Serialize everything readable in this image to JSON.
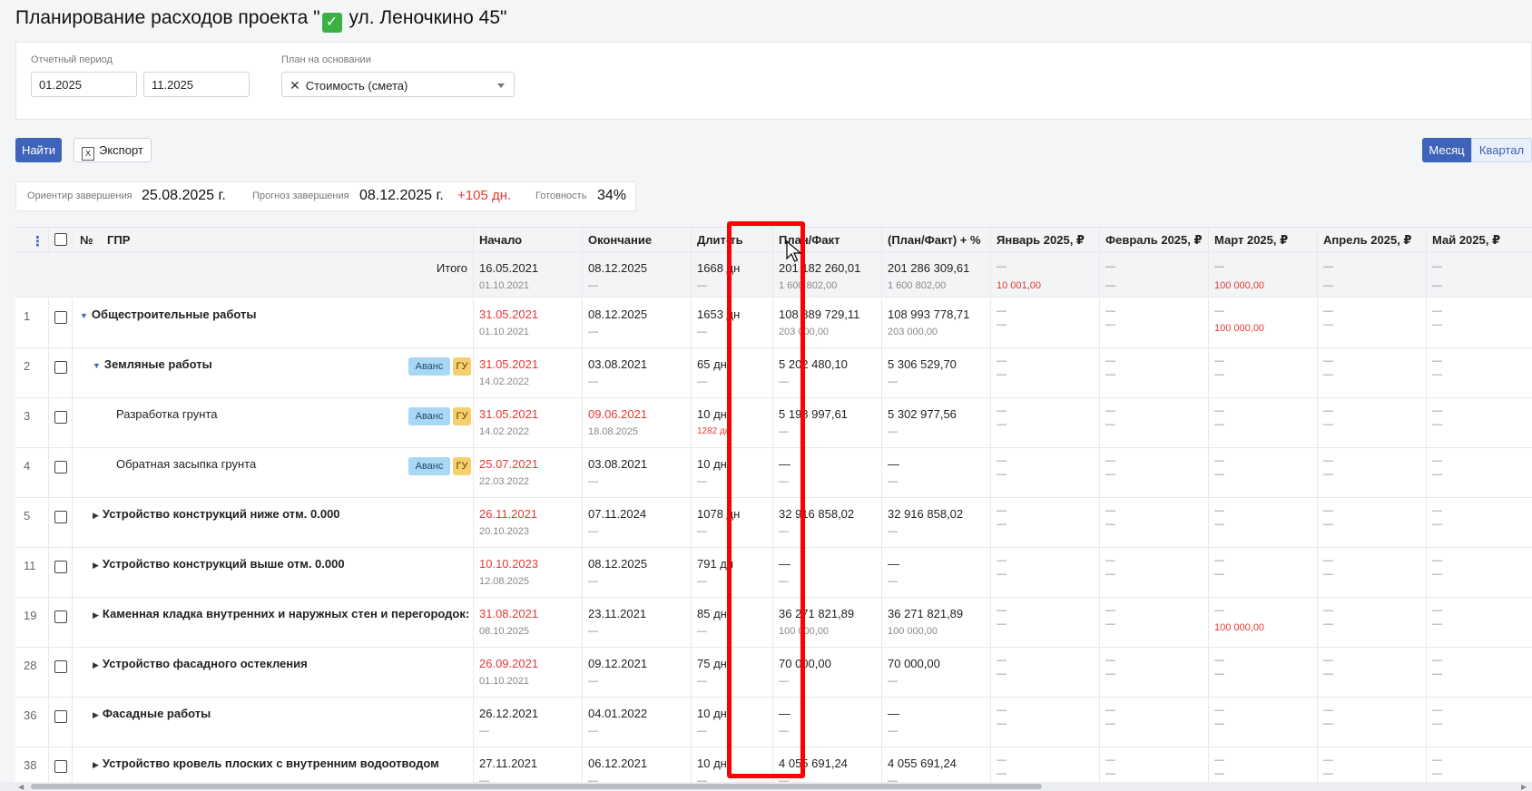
{
  "page": {
    "title_prefix": "Планирование расходов проекта \"",
    "title_suffix": " ул. Леночкино 45\""
  },
  "filters": {
    "period_label": "Отчетный период",
    "period_from": "01.2025",
    "period_to": "11.2025",
    "basis_label": "План на основании",
    "basis_value": "Стоимость (смета)"
  },
  "toolbar": {
    "find_label": "Найти",
    "export_label": "Экспорт",
    "month_label": "Месяц",
    "quarter_label": "Квартал"
  },
  "summary": {
    "target_label": "Ориентир завершения",
    "target_value": "25.08.2025 г.",
    "forecast_label": "Прогноз завершения",
    "forecast_value": "08.12.2025 г.",
    "forecast_delta": "+105 дн.",
    "readiness_label": "Готовность",
    "readiness_value": "34%"
  },
  "table": {
    "headers": {
      "num": "№",
      "name": "ГПР",
      "start": "Начало",
      "end": "Окончание",
      "duration": "Длит-ть",
      "plan_fact": "План/Факт",
      "plan_fact_pct": "(План/Факт) + %",
      "m1": "Январь 2025, ₽",
      "m2": "Февраль 2025, ₽",
      "m3": "Март 2025, ₽",
      "m4": "Апрель 2025, ₽",
      "m5": "Май 2025, ₽"
    },
    "totals": {
      "label": "Итого",
      "start": "16.05.2021",
      "start2": "01.10.2021",
      "end": "08.12.2025",
      "end2": "—",
      "dur": "1668 дн",
      "dur2": "—",
      "pf": "201 182 260,01",
      "pf2": "1 600 802,00",
      "pfp": "201 286 309,61",
      "pfp2": "1 600 802,00",
      "m1": "—",
      "m1b": "10 001,00",
      "m2": "—",
      "m2b": "—",
      "m3": "—",
      "m3b": "100 000,00",
      "m4": "—",
      "m4b": "—",
      "m5": "—",
      "m5b": "—"
    },
    "rows": [
      {
        "num": "1",
        "name": "Общестроительные работы",
        "start": "31.05.2021",
        "start2": "01.10.2021",
        "end": "08.12.2025",
        "end2": "—",
        "dur": "1653 дн",
        "dur2": "—",
        "pf": "108 889 729,11",
        "pf2": "203 000,00",
        "pfp": "108 993 778,71",
        "pfp2": "203 000,00",
        "m1": "—",
        "m1b": "—",
        "m2": "—",
        "m2b": "—",
        "m3": "—",
        "m3b": "100 000,00",
        "m4": "—",
        "m4b": "—",
        "m5": "—",
        "m5b": "—"
      },
      {
        "num": "2",
        "name": "Земляные работы",
        "tag1": "Аванс",
        "tag2": "ГУ",
        "start": "31.05.2021",
        "start2": "14.02.2022",
        "end": "03.08.2021",
        "end2": "—",
        "dur": "65 дн",
        "dur2": "—",
        "pf": "5 202 480,10",
        "pf2": "—",
        "pfp": "5 306 529,70",
        "pfp2": "—",
        "m1": "—",
        "m1b": "—",
        "m2": "—",
        "m2b": "—",
        "m3": "—",
        "m3b": "—",
        "m4": "—",
        "m4b": "—",
        "m5": "—",
        "m5b": "—"
      },
      {
        "num": "3",
        "name": "Разработка грунта",
        "tag1": "Аванс",
        "tag2": "ГУ",
        "start": "31.05.2021",
        "start2": "14.02.2022",
        "end": "09.06.2021",
        "end2": "18.08.2025",
        "dur": "10 дн",
        "dur2": "1282 дн",
        "pf": "5 198 997,61",
        "pf2": "—",
        "pfp": "5 302 977,56",
        "pfp2": "—",
        "m1": "—",
        "m1b": "—",
        "m2": "—",
        "m2b": "—",
        "m3": "—",
        "m3b": "—",
        "m4": "—",
        "m4b": "—",
        "m5": "—",
        "m5b": "—"
      },
      {
        "num": "4",
        "name": "Обратная засыпка грунта",
        "tag1": "Аванс",
        "tag2": "ГУ",
        "start": "25.07.2021",
        "start2": "22.03.2022",
        "end": "03.08.2021",
        "end2": "—",
        "dur": "10 дн",
        "dur2": "—",
        "pf": "—",
        "pf2": "—",
        "pfp": "—",
        "pfp2": "—",
        "m1": "—",
        "m1b": "—",
        "m2": "—",
        "m2b": "—",
        "m3": "—",
        "m3b": "—",
        "m4": "—",
        "m4b": "—",
        "m5": "—",
        "m5b": "—"
      },
      {
        "num": "5",
        "name": "Устройство конструкций ниже отм. 0.000",
        "start": "26.11.2021",
        "start2": "20.10.2023",
        "end": "07.11.2024",
        "end2": "—",
        "dur": "1078 дн",
        "dur2": "—",
        "pf": "32 916 858,02",
        "pf2": "—",
        "pfp": "32 916 858,02",
        "pfp2": "—",
        "m1": "—",
        "m1b": "—",
        "m2": "—",
        "m2b": "—",
        "m3": "—",
        "m3b": "—",
        "m4": "—",
        "m4b": "—",
        "m5": "—",
        "m5b": "—"
      },
      {
        "num": "11",
        "name": "Устройство конструкций выше отм. 0.000",
        "start": "10.10.2023",
        "start2": "12.08.2025",
        "end": "08.12.2025",
        "end2": "—",
        "dur": "791 дн",
        "dur2": "—",
        "pf": "—",
        "pf2": "—",
        "pfp": "—",
        "pfp2": "—",
        "m1": "—",
        "m1b": "—",
        "m2": "—",
        "m2b": "—",
        "m3": "—",
        "m3b": "—",
        "m4": "—",
        "m4b": "—",
        "m5": "—",
        "m5b": "—"
      },
      {
        "num": "19",
        "name": "Каменная кладка внутренних и наружных стен и перегородок:",
        "start": "31.08.2021",
        "start2": "08.10.2025",
        "end": "23.11.2021",
        "end2": "—",
        "dur": "85 дн",
        "dur2": "—",
        "pf": "36 271 821,89",
        "pf2": "100 000,00",
        "pfp": "36 271 821,89",
        "pfp2": "100 000,00",
        "m1": "—",
        "m1b": "—",
        "m2": "—",
        "m2b": "—",
        "m3": "—",
        "m3b": "100 000,00",
        "m4": "—",
        "m4b": "—",
        "m5": "—",
        "m5b": "—"
      },
      {
        "num": "28",
        "name": "Устройство фасадного остекления",
        "start": "26.09.2021",
        "start2": "01.10.2021",
        "end": "09.12.2021",
        "end2": "—",
        "dur": "75 дн",
        "dur2": "—",
        "pf": "70 000,00",
        "pf2": "—",
        "pfp": "70 000,00",
        "pfp2": "—",
        "m1": "—",
        "m1b": "—",
        "m2": "—",
        "m2b": "—",
        "m3": "—",
        "m3b": "—",
        "m4": "—",
        "m4b": "—",
        "m5": "—",
        "m5b": "—"
      },
      {
        "num": "36",
        "name": "Фасадные работы",
        "start": "26.12.2021",
        "start2": "—",
        "end": "04.01.2022",
        "end2": "—",
        "dur": "10 дн",
        "dur2": "—",
        "pf": "—",
        "pf2": "—",
        "pfp": "—",
        "pfp2": "—",
        "m1": "—",
        "m1b": "—",
        "m2": "—",
        "m2b": "—",
        "m3": "—",
        "m3b": "—",
        "m4": "—",
        "m4b": "—",
        "m5": "—",
        "m5b": "—"
      },
      {
        "num": "38",
        "name": "Устройство кровель плоских с внутренним водоотводом",
        "start": "27.11.2021",
        "start2": "—",
        "end": "06.12.2021",
        "end2": "—",
        "dur": "10 дн",
        "dur2": "—",
        "pf": "4 055 691,24",
        "pf2": "—",
        "pfp": "4 055 691,24",
        "pfp2": "—",
        "m1": "—",
        "m1b": "—",
        "m2": "—",
        "m2b": "—",
        "m3": "—",
        "m3b": "—",
        "m4": "—",
        "m4b": "—",
        "m5": "—",
        "m5b": "—"
      }
    ]
  },
  "colors": {
    "accent": "#3e63b8",
    "overdue": "#e53935",
    "highlight": "#ff0000"
  }
}
